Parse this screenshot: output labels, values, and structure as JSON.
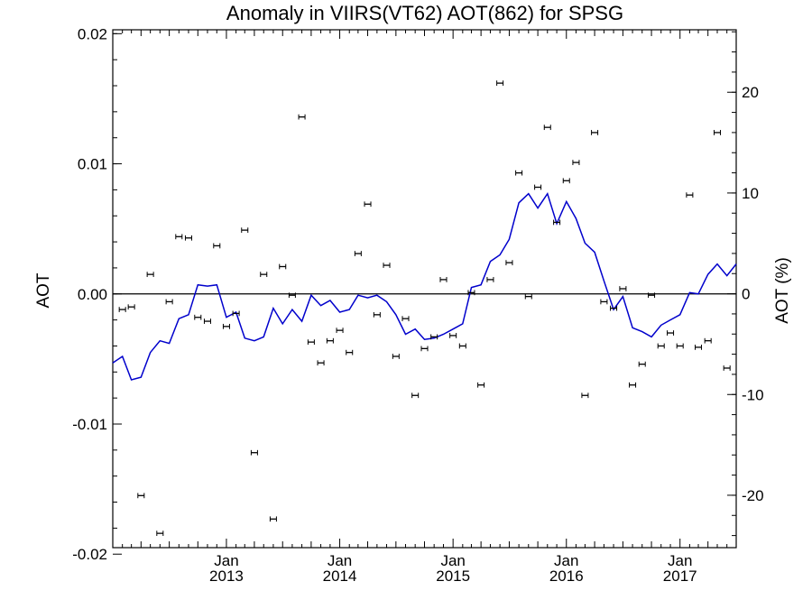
{
  "chart_data": {
    "type": "scatter",
    "title": "Anomaly in VIIRS(VT62) AOT(862) for SPSG",
    "ylabel": "AOT",
    "ylabel_right": "AOT (%)",
    "xlabel": "",
    "xlim": [
      "2012-01-01",
      "2017-07-01"
    ],
    "ylim": [
      -0.0195,
      0.0203
    ],
    "ylim_right": [
      -25.2,
      26.2
    ],
    "y_ticks": [
      {
        "value": 0.02,
        "label": "0.02"
      },
      {
        "value": 0.01,
        "label": "0.01"
      },
      {
        "value": 0.0,
        "label": "0.00"
      },
      {
        "value": -0.01,
        "label": "-0.01"
      },
      {
        "value": -0.02,
        "label": "-0.02"
      }
    ],
    "y_right_ticks": [
      {
        "value": 20,
        "label": "20"
      },
      {
        "value": 10,
        "label": "10"
      },
      {
        "value": 0,
        "label": "0"
      },
      {
        "value": -10,
        "label": "-10"
      },
      {
        "value": -20,
        "label": "-20"
      }
    ],
    "x_ticks": [
      {
        "date": "2013-01-01",
        "month": "Jan",
        "year": "2013"
      },
      {
        "date": "2014-01-01",
        "month": "Jan",
        "year": "2014"
      },
      {
        "date": "2015-01-01",
        "month": "Jan",
        "year": "2015"
      },
      {
        "date": "2016-01-01",
        "month": "Jan",
        "year": "2016"
      },
      {
        "date": "2017-01-01",
        "month": "Jan",
        "year": "2017"
      }
    ],
    "zero_line": 0,
    "grid": false,
    "legend": "none",
    "colors": {
      "points": "#000000",
      "smooth_line": "#0000cc",
      "zero_line": "#000000"
    },
    "series": [
      {
        "type": "scatter_errorbar",
        "x": [
          "2012-02",
          "2012-03",
          "2012-04",
          "2012-05",
          "2012-06",
          "2012-07",
          "2012-08",
          "2012-09",
          "2012-10",
          "2012-11",
          "2012-12",
          "2013-01",
          "2013-02",
          "2013-03",
          "2013-04",
          "2013-05",
          "2013-06",
          "2013-07",
          "2013-08",
          "2013-09",
          "2013-10",
          "2013-11",
          "2013-12",
          "2014-01",
          "2014-02",
          "2014-03",
          "2014-04",
          "2014-05",
          "2014-06",
          "2014-07",
          "2014-08",
          "2014-09",
          "2014-10",
          "2014-11",
          "2014-12",
          "2015-01",
          "2015-02",
          "2015-03",
          "2015-04",
          "2015-05",
          "2015-06",
          "2015-07",
          "2015-08",
          "2015-09",
          "2015-10",
          "2015-11",
          "2015-12",
          "2016-01",
          "2016-02",
          "2016-03",
          "2016-04",
          "2016-05",
          "2016-06",
          "2016-07",
          "2016-08",
          "2016-09",
          "2016-10",
          "2016-11",
          "2016-12",
          "2017-01",
          "2017-02",
          "2017-03",
          "2017-04",
          "2017-05",
          "2017-06"
        ],
        "y": [
          -0.0012,
          -0.001,
          -0.0155,
          0.0015,
          -0.0184,
          -0.0006,
          0.0044,
          0.0043,
          -0.0018,
          -0.0021,
          0.0037,
          -0.0025,
          -0.0015,
          0.0049,
          -0.0122,
          0.0015,
          -0.0173,
          0.0021,
          -0.0001,
          0.0136,
          -0.0037,
          -0.0053,
          -0.0036,
          -0.0028,
          -0.0045,
          0.0031,
          0.0069,
          -0.0016,
          0.0022,
          -0.0048,
          -0.0019,
          -0.0078,
          -0.0042,
          -0.0033,
          0.0011,
          -0.0032,
          -0.004,
          0.0001,
          -0.007,
          0.0011,
          0.0162,
          0.0024,
          0.0093,
          -0.0002,
          0.0082,
          0.0128,
          0.0055,
          0.0087,
          0.0101,
          -0.0078,
          0.0124,
          -0.0006,
          -0.0011,
          0.0004,
          -0.007,
          -0.0054,
          -0.0001,
          -0.004,
          -0.003,
          -0.004,
          0.0076,
          -0.0041,
          -0.0036,
          0.0124,
          -0.0057
        ],
        "error": 0.0002
      },
      {
        "type": "line",
        "x": [
          "2012-01",
          "2012-02",
          "2012-03",
          "2012-04",
          "2012-05",
          "2012-06",
          "2012-07",
          "2012-08",
          "2012-09",
          "2012-10",
          "2012-11",
          "2012-12",
          "2013-01",
          "2013-02",
          "2013-03",
          "2013-04",
          "2013-05",
          "2013-06",
          "2013-07",
          "2013-08",
          "2013-09",
          "2013-10",
          "2013-11",
          "2013-12",
          "2014-01",
          "2014-02",
          "2014-03",
          "2014-04",
          "2014-05",
          "2014-06",
          "2014-07",
          "2014-08",
          "2014-09",
          "2014-10",
          "2014-11",
          "2014-12",
          "2015-01",
          "2015-02",
          "2015-03",
          "2015-04",
          "2015-05",
          "2015-06",
          "2015-07",
          "2015-08",
          "2015-09",
          "2015-10",
          "2015-11",
          "2015-12",
          "2016-01",
          "2016-02",
          "2016-03",
          "2016-04",
          "2016-05",
          "2016-06",
          "2016-07",
          "2016-08",
          "2016-09",
          "2016-10",
          "2016-11",
          "2016-12",
          "2017-01",
          "2017-02",
          "2017-03",
          "2017-04",
          "2017-05",
          "2017-06",
          "2017-07"
        ],
        "y": [
          -0.0053,
          -0.0048,
          -0.0066,
          -0.0064,
          -0.0045,
          -0.0036,
          -0.0038,
          -0.0019,
          -0.0016,
          0.0007,
          0.0006,
          0.0007,
          -0.0018,
          -0.0014,
          -0.0034,
          -0.0036,
          -0.0033,
          -0.0011,
          -0.0023,
          -0.0012,
          -0.0021,
          -0.0001,
          -0.0009,
          -0.0005,
          -0.0014,
          -0.0012,
          -0.0001,
          -0.0003,
          -0.0001,
          -0.0006,
          -0.0016,
          -0.0031,
          -0.0027,
          -0.0035,
          -0.0034,
          -0.0031,
          -0.0027,
          -0.0023,
          0.0005,
          0.0007,
          0.0025,
          0.003,
          0.0042,
          0.007,
          0.0077,
          0.0066,
          0.0077,
          0.0054,
          0.0071,
          0.0058,
          0.0039,
          0.0032,
          0.001,
          -0.0012,
          -0.0002,
          -0.0026,
          -0.0029,
          -0.0033,
          -0.0024,
          -0.002,
          -0.0016,
          0.0001,
          0.0,
          0.0015,
          0.0023,
          0.0014,
          0.0023
        ]
      }
    ]
  }
}
